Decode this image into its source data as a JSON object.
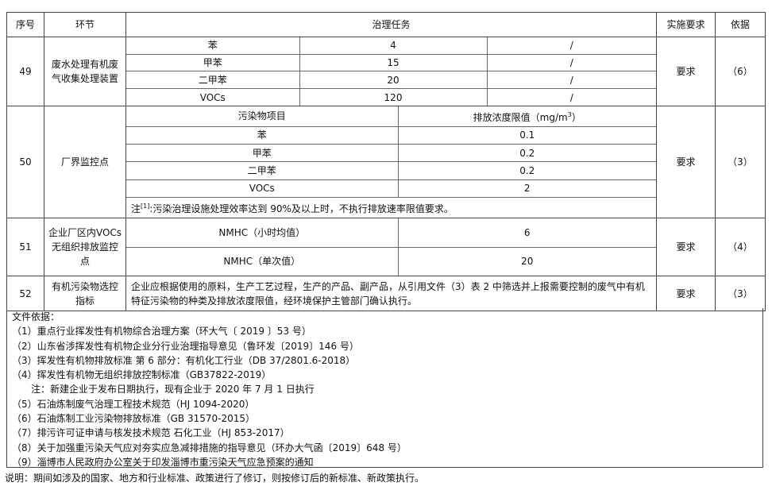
{
  "headers": {
    "no": "序号",
    "stage": "环节",
    "task": "治理任务",
    "req": "实施要求",
    "basis": "依据"
  },
  "r49": {
    "no": "49",
    "stage": "废水处理有机废气收集处理装置",
    "items": [
      [
        "苯",
        "4",
        "/"
      ],
      [
        "甲苯",
        "15",
        "/"
      ],
      [
        "二甲苯",
        "20",
        "/"
      ],
      [
        "VOCs",
        "120",
        "/"
      ]
    ],
    "req": "要求",
    "basis": "（6）"
  },
  "r50": {
    "no": "50",
    "stage": "厂界监控点",
    "h1": "污染物项目",
    "h2": "排放浓度限值（mg/m",
    "h2sup": "3",
    "h2end": "）",
    "items": [
      [
        "苯",
        "0.1"
      ],
      [
        "甲苯",
        "0.2"
      ],
      [
        "二甲苯",
        "0.2"
      ],
      [
        "VOCs",
        "2"
      ]
    ],
    "note_pre": "注",
    "note_sup": "[1]",
    "note": ":污染治理设施处理效率达到 90%及以上时，不执行排放速率限值要求。",
    "req": "要求",
    "basis": "（3）"
  },
  "r51": {
    "no": "51",
    "stage": "企业厂区内VOCs 无组织排放监控点",
    "items": [
      [
        "NMHC（小时均值）",
        "6"
      ],
      [
        "NMHC（单次值）",
        "20"
      ]
    ],
    "req": "要求",
    "basis": "（4）"
  },
  "r52": {
    "no": "52",
    "stage": "有机污染物选控指标",
    "task": "企业应根据使用的原料，生产工艺过程，生产的产品、副产品，从引用文件（3）表 2 中筛选并上报需要控制的废气中有机特征污染物的种类及排放浓度限值，经环境保护主管部门确认执行。",
    "req": "要求",
    "basis": "（3）"
  },
  "notes": {
    "title": "文件依据：",
    "items": [
      "（1）重点行业挥发性有机物综合治理方案（环大气〔 2019 〕53 号）",
      "（2）山东省涉挥发性有机物企业分行业治理指导意见（鲁环发〔2019〕146 号）",
      "（3）挥发性有机物排放标准 第 6 部分：有机化工行业（DB 37/2801.6-2018）",
      "（4）挥发性有机物无组织排放控制标准（GB37822-2019）",
      "　　注：新建企业于发布日期执行，现有企业于 2020 年 7 月 1 日执行",
      "（5）石油炼制废气治理工程技术规范（HJ 1094-2020）",
      "（6）石油炼制工业污染物排放标准（GB 31570-2015）",
      "（7）排污许可证申请与核发技术规范 石化工业（HJ 853-2017）",
      "（8）关于加强重污染天气应对夯实应急减排措施的指导意见（环办大气函〔2019〕648 号）",
      "（9）淄博市人民政府办公室关于印发淄博市重污染天气应急预案的通知"
    ]
  },
  "footer": "说明：期间如涉及的国家、地方和行业标准、政策进行了修订，则按修订后的新标准、新政策执行。"
}
